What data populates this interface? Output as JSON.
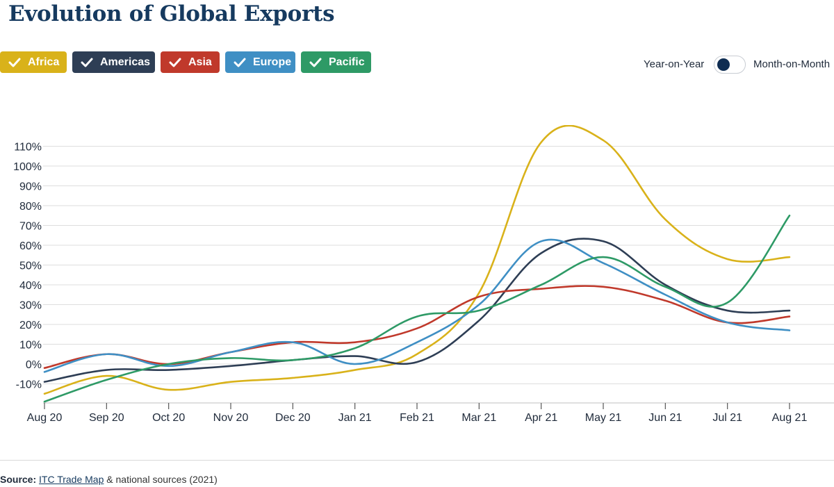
{
  "title": "Evolution of Global Exports",
  "legend": {
    "items": [
      {
        "label": "Africa",
        "color": "#d9b21a"
      },
      {
        "label": "Americas",
        "color": "#2e3e55"
      },
      {
        "label": "Asia",
        "color": "#c0392b"
      },
      {
        "label": "Europe",
        "color": "#3f8fc4"
      },
      {
        "label": "Pacific",
        "color": "#2e9a66"
      }
    ]
  },
  "toggle": {
    "left_label": "Year-on-Year",
    "right_label": "Month-on-Month",
    "selected": "Year-on-Year"
  },
  "source": {
    "prefix": "Source:",
    "link_text": "ITC Trade Map",
    "suffix": " & national sources (2021)"
  },
  "chart_data": {
    "type": "line",
    "title": "Evolution of Global Exports",
    "xlabel": "",
    "ylabel": "",
    "x": [
      "Aug 20",
      "Sep 20",
      "Oct 20",
      "Nov 20",
      "Dec 20",
      "Jan 21",
      "Feb 21",
      "Mar 21",
      "Apr 21",
      "May 21",
      "Jun 21",
      "Jul 21",
      "Aug 21"
    ],
    "yticks": [
      -10,
      0,
      10,
      20,
      30,
      40,
      50,
      60,
      70,
      80,
      90,
      100,
      110
    ],
    "ytick_labels": [
      "-10%",
      "0%",
      "10%",
      "20%",
      "30%",
      "40%",
      "50%",
      "60%",
      "70%",
      "80%",
      "90%",
      "100%",
      "110%"
    ],
    "ylim": [
      -15,
      112
    ],
    "grid": true,
    "legend_position": "top-left",
    "series": [
      {
        "name": "Africa",
        "color": "#d9b21a",
        "values": [
          -15,
          -6,
          -13,
          -9,
          -7,
          -3,
          5,
          36,
          112,
          113,
          73,
          53,
          54
        ]
      },
      {
        "name": "Americas",
        "color": "#2e3e55",
        "values": [
          -9,
          -3,
          -3,
          -1,
          2,
          4,
          1,
          22,
          56,
          62,
          40,
          27,
          27
        ]
      },
      {
        "name": "Asia",
        "color": "#c0392b",
        "values": [
          -2,
          5,
          0,
          6,
          11,
          11,
          18,
          34,
          38,
          39,
          32,
          21,
          24
        ]
      },
      {
        "name": "Europe",
        "color": "#3f8fc4",
        "values": [
          -4,
          5,
          -1,
          6,
          11,
          0,
          11,
          30,
          62,
          51,
          35,
          21,
          17
        ]
      },
      {
        "name": "Pacific",
        "color": "#2e9a66",
        "values": [
          -19,
          -8,
          0,
          3,
          2,
          8,
          24,
          27,
          40,
          54,
          39,
          31,
          75
        ]
      }
    ]
  }
}
